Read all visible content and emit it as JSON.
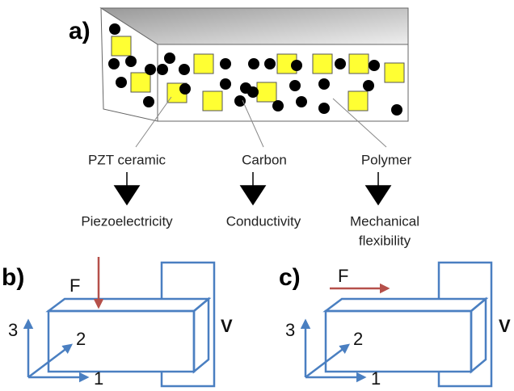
{
  "panel_a": {
    "label": "a)",
    "components": [
      {
        "name": "PZT ceramic",
        "property": [
          "Piezoelectricity"
        ]
      },
      {
        "name": "Carbon",
        "property": [
          "Conductivity"
        ]
      },
      {
        "name": "Polymer",
        "property": [
          "Mechanical",
          "flexibility"
        ]
      }
    ]
  },
  "panel_b": {
    "label": "b)",
    "force": "F",
    "voltage": "V",
    "axes": [
      "1",
      "2",
      "3"
    ]
  },
  "panel_c": {
    "label": "c)",
    "force": "F",
    "voltage": "V",
    "axes": [
      "1",
      "2",
      "3"
    ]
  }
}
